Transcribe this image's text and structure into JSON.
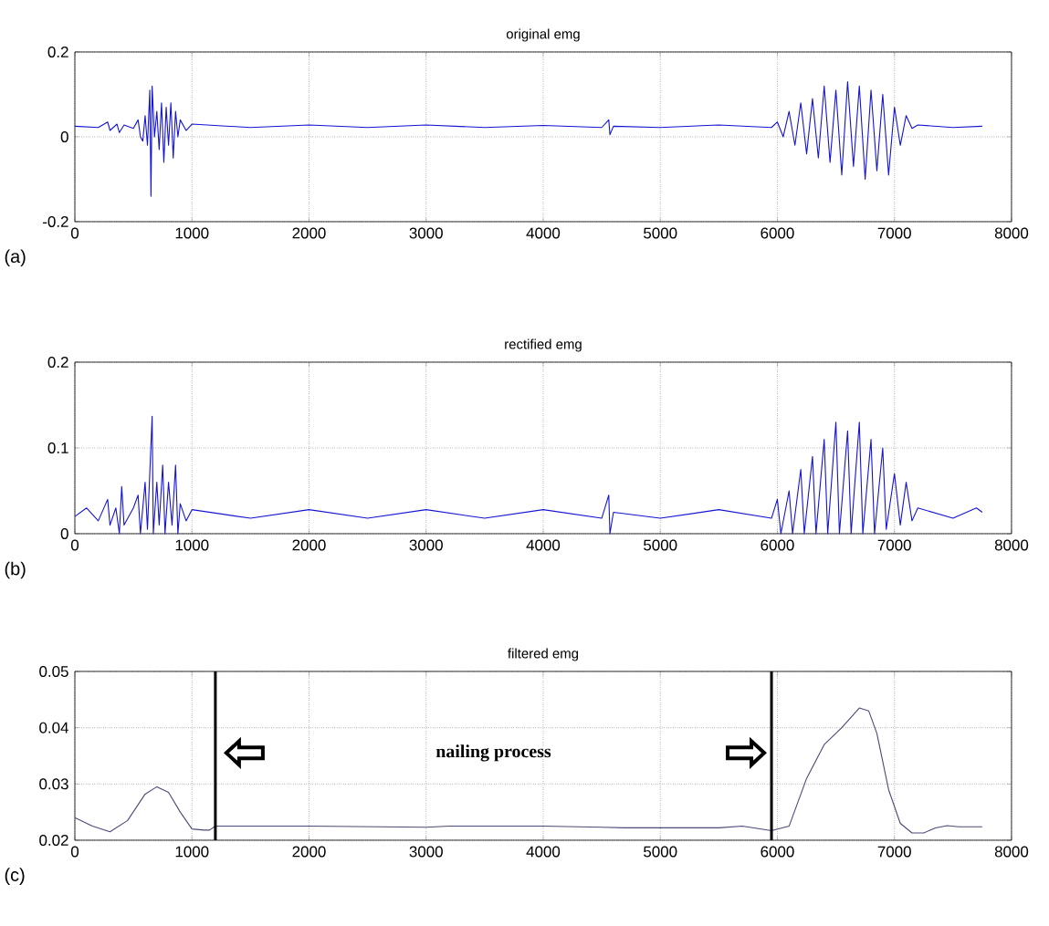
{
  "chart_data": [
    {
      "type": "line",
      "title": "original emg",
      "xlim": [
        0,
        8000
      ],
      "ylim": [
        -0.2,
        0.2
      ],
      "xticks": [
        0,
        1000,
        2000,
        3000,
        4000,
        5000,
        6000,
        7000,
        8000
      ],
      "yticks": [
        -0.2,
        0,
        0.2
      ],
      "grid": true,
      "annotations": [
        "(a)"
      ],
      "series": [
        {
          "color": "#1414d2",
          "x": [
            0,
            200,
            280,
            300,
            360,
            380,
            420,
            500,
            540,
            560,
            580,
            600,
            620,
            640,
            650,
            660,
            680,
            700,
            720,
            740,
            760,
            780,
            800,
            820,
            840,
            860,
            880,
            900,
            950,
            1000,
            1500,
            2000,
            2500,
            3000,
            3500,
            4000,
            4500,
            4560,
            4570,
            4600,
            5000,
            5500,
            5950,
            6000,
            6050,
            6100,
            6150,
            6200,
            6250,
            6300,
            6350,
            6400,
            6450,
            6500,
            6550,
            6600,
            6650,
            6700,
            6750,
            6800,
            6850,
            6900,
            6950,
            7000,
            7050,
            7100,
            7150,
            7200,
            7500,
            7750
          ],
          "values": [
            0.025,
            0.022,
            0.035,
            0.015,
            0.03,
            0.01,
            0.028,
            0.02,
            0.04,
            0.0,
            -0.01,
            0.05,
            -0.02,
            0.11,
            -0.14,
            0.12,
            0.0,
            0.06,
            -0.03,
            0.08,
            -0.06,
            0.07,
            -0.02,
            0.08,
            -0.05,
            0.06,
            0.0,
            0.04,
            0.015,
            0.03,
            0.022,
            0.028,
            0.022,
            0.028,
            0.022,
            0.027,
            0.022,
            0.04,
            0.005,
            0.025,
            0.022,
            0.028,
            0.022,
            0.035,
            0.0,
            0.06,
            -0.02,
            0.08,
            -0.04,
            0.09,
            -0.05,
            0.12,
            -0.06,
            0.11,
            -0.09,
            0.13,
            -0.07,
            0.12,
            -0.1,
            0.11,
            -0.08,
            0.1,
            -0.09,
            0.07,
            -0.02,
            0.05,
            0.02,
            0.028,
            0.022,
            0.025
          ]
        }
      ]
    },
    {
      "type": "line",
      "title": "rectified emg",
      "xlim": [
        0,
        8000
      ],
      "ylim": [
        0,
        0.2
      ],
      "xticks": [
        0,
        1000,
        2000,
        3000,
        4000,
        5000,
        6000,
        7000,
        8000
      ],
      "yticks": [
        0,
        0.1,
        0.2
      ],
      "grid": true,
      "annotations": [
        "(b)"
      ],
      "series": [
        {
          "color": "#1414d2",
          "x": [
            0,
            100,
            200,
            280,
            300,
            350,
            380,
            400,
            420,
            500,
            540,
            560,
            600,
            620,
            660,
            670,
            700,
            720,
            750,
            770,
            800,
            830,
            860,
            880,
            900,
            950,
            1000,
            1500,
            2000,
            2500,
            3000,
            3500,
            4000,
            4500,
            4560,
            4570,
            4600,
            5000,
            5500,
            5950,
            6000,
            6030,
            6100,
            6130,
            6200,
            6230,
            6300,
            6330,
            6400,
            6430,
            6500,
            6530,
            6600,
            6630,
            6700,
            6730,
            6800,
            6830,
            6900,
            6930,
            7000,
            7050,
            7100,
            7150,
            7200,
            7500,
            7700,
            7750
          ],
          "values": [
            0.02,
            0.03,
            0.015,
            0.04,
            0.01,
            0.03,
            0.0,
            0.055,
            0.01,
            0.03,
            0.045,
            0.0,
            0.06,
            0.005,
            0.137,
            0.0,
            0.06,
            0.01,
            0.08,
            0.0,
            0.06,
            0.01,
            0.08,
            0.0,
            0.035,
            0.015,
            0.028,
            0.018,
            0.028,
            0.018,
            0.028,
            0.018,
            0.028,
            0.018,
            0.045,
            0.0,
            0.025,
            0.018,
            0.028,
            0.018,
            0.04,
            0.0,
            0.05,
            0.0,
            0.075,
            0.0,
            0.09,
            0.0,
            0.11,
            0.0,
            0.13,
            0.0,
            0.12,
            0.0,
            0.13,
            0.0,
            0.11,
            0.0,
            0.1,
            0.005,
            0.07,
            0.01,
            0.06,
            0.015,
            0.03,
            0.018,
            0.03,
            0.025
          ]
        }
      ]
    },
    {
      "type": "line",
      "title": "filtered emg",
      "xlim": [
        0,
        8000
      ],
      "ylim": [
        0.02,
        0.05
      ],
      "xticks": [
        0,
        1000,
        2000,
        3000,
        4000,
        5000,
        6000,
        7000,
        8000
      ],
      "yticks": [
        0.02,
        0.03,
        0.04,
        0.05
      ],
      "grid": true,
      "annotations": [
        "nailing process",
        "(c)"
      ],
      "ref_lines": [
        {
          "axis": "x",
          "value": 1200,
          "color": "#000000"
        },
        {
          "axis": "x",
          "value": 5950,
          "color": "#000000"
        }
      ],
      "series": [
        {
          "color": "#4a4a78",
          "x": [
            0,
            150,
            300,
            450,
            600,
            700,
            800,
            900,
            1000,
            1100,
            1150,
            1200,
            2000,
            3000,
            3200,
            4000,
            4500,
            4700,
            5000,
            5500,
            5700,
            5950,
            6100,
            6250,
            6400,
            6550,
            6700,
            6780,
            6850,
            6950,
            7050,
            7150,
            7250,
            7350,
            7450,
            7550,
            7750
          ],
          "values": [
            0.024,
            0.0225,
            0.0215,
            0.0235,
            0.0282,
            0.0295,
            0.0285,
            0.025,
            0.022,
            0.0218,
            0.0218,
            0.0225,
            0.0225,
            0.0223,
            0.0225,
            0.0225,
            0.0223,
            0.0222,
            0.0222,
            0.0222,
            0.0225,
            0.0217,
            0.0225,
            0.031,
            0.037,
            0.04,
            0.0435,
            0.043,
            0.039,
            0.029,
            0.023,
            0.0213,
            0.0213,
            0.0222,
            0.0226,
            0.0224,
            0.0224
          ]
        }
      ]
    }
  ]
}
